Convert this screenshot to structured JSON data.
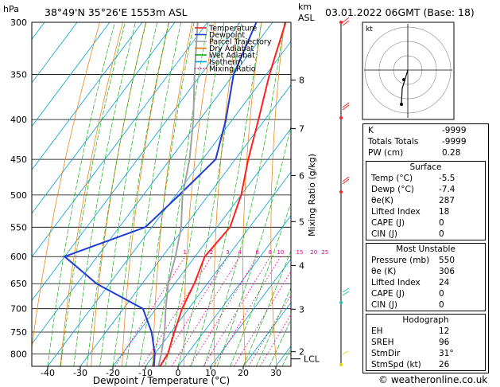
{
  "header": {
    "location": "38°49'N  35°26'E  1553m  ASL",
    "datetime": "03.01.2022  06GMT  (Base: 18)",
    "pressure_unit": "hPa",
    "height_unit_top": "km",
    "height_unit_bottom": "ASL",
    "mixing_ratio_label": "Mixing Ratio (g/kg)",
    "x_axis_label": "Dewpoint / Temperature (°C)",
    "lcl_label": "LCL",
    "footer": "© weatheronline.co.uk",
    "hodo_label": "kt"
  },
  "legend": [
    {
      "label": "Temperature",
      "color": "#ff2020",
      "style": "solid"
    },
    {
      "label": "Dewpoint",
      "color": "#1f3ad6",
      "style": "solid"
    },
    {
      "label": "Parcel Trajectory",
      "color": "#a0a0a0",
      "style": "solid"
    },
    {
      "label": "Dry Adiabat",
      "color": "#e87800",
      "style": "solid"
    },
    {
      "label": "Wet Adiabat",
      "color": "#17b017",
      "style": "solid"
    },
    {
      "label": "Isotherm",
      "color": "#00a0e0",
      "style": "solid"
    },
    {
      "label": "Mixing Ratio",
      "color": "#e0008c",
      "style": "dotted"
    }
  ],
  "chart_data": {
    "type": "line",
    "title": "38°49'N  35°26'E  1553m  ASL",
    "xlabel": "Dewpoint / Temperature (°C)",
    "ylabel": "hPa",
    "x_ticks": [
      -40,
      -30,
      -20,
      -10,
      0,
      10,
      20,
      30
    ],
    "pressure_levels": [
      300,
      350,
      400,
      450,
      500,
      550,
      600,
      650,
      700,
      750,
      800
    ],
    "km_ticks": [
      {
        "label": "8",
        "p": 356
      },
      {
        "label": "7",
        "p": 411
      },
      {
        "label": "6",
        "p": 472
      },
      {
        "label": "5",
        "p": 541
      },
      {
        "label": "4",
        "p": 616
      },
      {
        "label": "3",
        "p": 701
      },
      {
        "label": "2",
        "p": 795
      }
    ],
    "lcl_p": 812,
    "mixing_ratio_labels": [
      "1",
      "2",
      "3",
      "4",
      "6",
      "8",
      "10",
      "15",
      "20",
      "25"
    ],
    "mixing_ratio_values": [
      1,
      2,
      3,
      4,
      6,
      8,
      10,
      15,
      20,
      25
    ],
    "series": [
      {
        "name": "Temperature",
        "color": "#ff2020",
        "points": [
          [
            -46,
            300
          ],
          [
            -39,
            350
          ],
          [
            -32,
            400
          ],
          [
            -26,
            450
          ],
          [
            -20,
            500
          ],
          [
            -16,
            550
          ],
          [
            -17,
            600
          ],
          [
            -14,
            650
          ],
          [
            -12,
            700
          ],
          [
            -9,
            750
          ],
          [
            -6,
            800
          ],
          [
            -5.5,
            830
          ]
        ]
      },
      {
        "name": "Dewpoint",
        "color": "#1f3ad6",
        "points": [
          [
            -55,
            300
          ],
          [
            -50,
            350
          ],
          [
            -42,
            400
          ],
          [
            -36,
            450
          ],
          [
            -39,
            500
          ],
          [
            -42,
            550
          ],
          [
            -60,
            600
          ],
          [
            -44,
            650
          ],
          [
            -24,
            700
          ],
          [
            -16,
            750
          ],
          [
            -10,
            800
          ],
          [
            -7.4,
            830
          ]
        ]
      },
      {
        "name": "Parcel Trajectory",
        "color": "#a0a0a0",
        "points": [
          [
            -73,
            300
          ],
          [
            -62,
            350
          ],
          [
            -52,
            400
          ],
          [
            -44,
            450
          ],
          [
            -38,
            500
          ],
          [
            -31,
            550
          ],
          [
            -26,
            600
          ],
          [
            -22,
            650
          ],
          [
            -17,
            700
          ],
          [
            -12,
            750
          ],
          [
            -8,
            800
          ],
          [
            -6,
            830
          ]
        ]
      }
    ]
  },
  "indices": {
    "rows": [
      {
        "label": "K",
        "value": "-9999"
      },
      {
        "label": "Totals Totals",
        "value": "-9999"
      },
      {
        "label": "PW (cm)",
        "value": "0.28"
      }
    ]
  },
  "surface": {
    "title": "Surface",
    "rows": [
      {
        "label": "Temp (°C)",
        "value": "-5.5"
      },
      {
        "label": "Dewp (°C)",
        "value": "-7.4"
      },
      {
        "label": "θe(K)",
        "value": "287"
      },
      {
        "label": "Lifted Index",
        "value": "18"
      },
      {
        "label": "CAPE (J)",
        "value": "0"
      },
      {
        "label": "CIN (J)",
        "value": "0"
      }
    ]
  },
  "most_unstable": {
    "title": "Most Unstable",
    "rows": [
      {
        "label": "Pressure (mb)",
        "value": "550"
      },
      {
        "label": "θe (K)",
        "value": "306"
      },
      {
        "label": "Lifted Index",
        "value": "24"
      },
      {
        "label": "CAPE (J)",
        "value": "0"
      },
      {
        "label": "CIN (J)",
        "value": "0"
      }
    ]
  },
  "hodograph": {
    "title": "Hodograph",
    "rows": [
      {
        "label": "EH",
        "value": "12"
      },
      {
        "label": "SREH",
        "value": "96"
      },
      {
        "label": "StmDir",
        "value": "31°"
      },
      {
        "label": "StmSpd (kt)",
        "value": "26"
      }
    ]
  }
}
